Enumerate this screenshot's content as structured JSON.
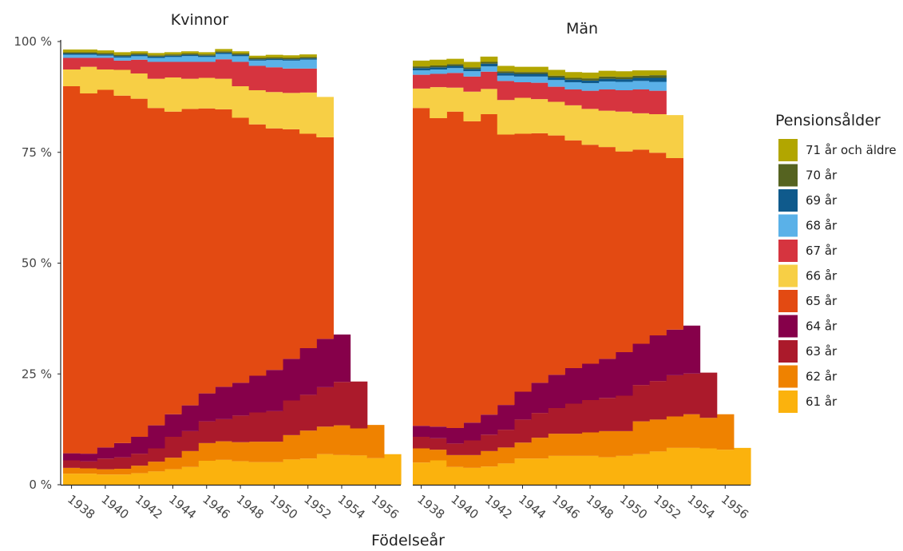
{
  "chart_data": [
    {
      "type": "area",
      "title": "Kvinnor",
      "xlabel": "Födelseår",
      "ylabel": "",
      "ylim": [
        0,
        100
      ],
      "yticks": [
        "0 %",
        "25 %",
        "50 %",
        "75 %",
        "100 %"
      ],
      "xticks": [
        "1938",
        "1940",
        "1942",
        "1944",
        "1946",
        "1948",
        "1950",
        "1952",
        "1954",
        "1956"
      ],
      "x": [
        1938,
        1939,
        1940,
        1941,
        1942,
        1943,
        1944,
        1945,
        1946,
        1947,
        1948,
        1949,
        1950,
        1951,
        1952,
        1953,
        1954,
        1955,
        1956,
        1957
      ],
      "series": [
        {
          "name": "61 år",
          "values": [
            2.5,
            2.5,
            2.3,
            2.3,
            2.6,
            3.0,
            3.5,
            4.0,
            5.4,
            5.6,
            5.3,
            5.1,
            5.1,
            5.7,
            5.9,
            6.9,
            6.7,
            6.6,
            6.0,
            6.9
          ]
        },
        {
          "name": "62 år",
          "values": [
            1.3,
            1.2,
            1.2,
            1.3,
            1.7,
            2.2,
            2.6,
            3.6,
            4.0,
            4.2,
            4.3,
            4.6,
            4.6,
            5.5,
            6.3,
            6.2,
            6.7,
            6.1,
            7.5,
            null
          ]
        },
        {
          "name": "63 år",
          "values": [
            1.7,
            1.6,
            2.4,
            2.6,
            2.7,
            3.0,
            4.7,
            4.5,
            4.9,
            5.0,
            6.0,
            6.6,
            6.9,
            7.8,
            8.1,
            8.9,
            9.8,
            10.6,
            null,
            null
          ]
        },
        {
          "name": "64 år",
          "values": [
            1.6,
            1.7,
            2.5,
            3.2,
            3.8,
            5.2,
            5.1,
            5.8,
            6.3,
            7.3,
            7.4,
            8.3,
            9.3,
            9.4,
            10.5,
            10.9,
            10.7,
            null,
            null,
            null
          ]
        },
        {
          "name": "65 år",
          "values": [
            82.8,
            81.3,
            80.7,
            78.4,
            76.3,
            71.6,
            68.3,
            66.9,
            64.3,
            62.6,
            59.8,
            56.7,
            54.5,
            51.8,
            48.4,
            45.5,
            null,
            null,
            null,
            null
          ]
        },
        {
          "name": "66 år",
          "values": [
            3.8,
            6.0,
            4.6,
            5.8,
            5.7,
            6.6,
            7.7,
            6.8,
            6.9,
            6.9,
            7.1,
            7.7,
            8.2,
            8.2,
            9.3,
            9.1,
            null,
            null,
            null,
            null
          ]
        },
        {
          "name": "67 år",
          "values": [
            2.6,
            2.0,
            2.6,
            2.1,
            3.1,
            3.8,
            3.5,
            3.8,
            3.6,
            4.4,
            5.5,
            5.5,
            5.6,
            5.5,
            5.4,
            null,
            null,
            null,
            null,
            null
          ]
        },
        {
          "name": "68 år",
          "values": [
            0.7,
            0.7,
            0.5,
            0.7,
            0.8,
            0.9,
            1.1,
            1.3,
            1.1,
            1.2,
            1.3,
            1.2,
            1.6,
            1.8,
            2.0,
            null,
            null,
            null,
            null,
            null
          ]
        },
        {
          "name": "69 år",
          "values": [
            0.3,
            0.3,
            0.3,
            0.3,
            0.3,
            0.3,
            0.3,
            0.3,
            0.3,
            0.3,
            0.3,
            0.3,
            0.3,
            0.3,
            0.3,
            null,
            null,
            null,
            null,
            null
          ]
        },
        {
          "name": "70 år",
          "values": [
            0.3,
            0.3,
            0.3,
            0.3,
            0.3,
            0.3,
            0.3,
            0.3,
            0.3,
            0.3,
            0.3,
            0.3,
            0.3,
            0.3,
            0.3,
            null,
            null,
            null,
            null,
            null
          ]
        },
        {
          "name": "71 år och äldre",
          "values": [
            0.6,
            0.6,
            0.6,
            0.6,
            0.5,
            0.5,
            0.5,
            0.5,
            0.5,
            0.5,
            0.5,
            0.5,
            0.6,
            0.6,
            0.6,
            null,
            null,
            null,
            null,
            null
          ]
        }
      ]
    },
    {
      "type": "area",
      "title": "Män",
      "xlabel": "Födelseår",
      "ylabel": "",
      "ylim": [
        0,
        100
      ],
      "xticks": [
        "1938",
        "1940",
        "1942",
        "1944",
        "1946",
        "1948",
        "1950",
        "1952",
        "1954",
        "1956"
      ],
      "x": [
        1938,
        1939,
        1940,
        1941,
        1942,
        1943,
        1944,
        1945,
        1946,
        1947,
        1948,
        1949,
        1950,
        1951,
        1952,
        1953,
        1954,
        1955,
        1956,
        1957
      ],
      "series": [
        {
          "name": "61 år",
          "values": [
            5.0,
            5.5,
            4.0,
            3.8,
            4.1,
            4.8,
            5.9,
            5.9,
            6.5,
            6.5,
            6.5,
            6.2,
            6.5,
            6.9,
            7.5,
            8.3,
            8.3,
            8.2,
            7.9,
            8.3
          ]
        },
        {
          "name": "62 år",
          "values": [
            3.2,
            2.4,
            2.7,
            2.9,
            3.5,
            3.6,
            3.6,
            4.7,
            5.0,
            5.0,
            5.3,
            5.9,
            5.6,
            7.4,
            7.2,
            7.1,
            7.6,
            6.9,
            8.0,
            null
          ]
        },
        {
          "name": "63 år",
          "values": [
            2.6,
            2.6,
            2.6,
            3.3,
            3.7,
            4.0,
            5.2,
            5.6,
            5.8,
            6.8,
            7.3,
            7.5,
            8.0,
            8.2,
            8.7,
            9.3,
            9.2,
            10.2,
            null,
            null
          ]
        },
        {
          "name": "64 år",
          "values": [
            2.5,
            2.6,
            3.5,
            4.0,
            4.5,
            5.6,
            6.3,
            6.8,
            7.5,
            8.0,
            8.2,
            8.8,
            9.8,
            9.3,
            10.3,
            10.3,
            10.8,
            null,
            null,
            null
          ]
        },
        {
          "name": "65 år",
          "values": [
            71.7,
            69.6,
            71.4,
            68.0,
            67.8,
            61.0,
            58.2,
            56.3,
            54.0,
            51.4,
            49.4,
            47.8,
            45.3,
            43.8,
            41.2,
            38.7,
            null,
            null,
            null,
            null
          ]
        },
        {
          "name": "66 år",
          "values": [
            4.4,
            7.0,
            5.4,
            6.7,
            5.7,
            7.8,
            8.1,
            7.7,
            7.6,
            7.9,
            8.1,
            8.2,
            9.0,
            8.2,
            8.7,
            9.7,
            null,
            null,
            null,
            null
          ]
        },
        {
          "name": "67 år",
          "values": [
            3.1,
            3.0,
            3.3,
            3.4,
            3.9,
            4.3,
            3.5,
            3.7,
            3.4,
            3.6,
            4.1,
            4.8,
            4.8,
            5.4,
            5.3,
            null,
            null,
            null,
            null,
            null
          ]
        },
        {
          "name": "68 år",
          "values": [
            1.0,
            1.0,
            1.1,
            1.2,
            1.2,
            1.2,
            1.3,
            1.4,
            1.5,
            1.6,
            1.7,
            1.8,
            1.9,
            1.9,
            2.0,
            null,
            null,
            null,
            null,
            null
          ]
        },
        {
          "name": "69 år",
          "values": [
            0.5,
            0.5,
            0.5,
            0.5,
            0.6,
            0.6,
            0.6,
            0.6,
            0.6,
            0.6,
            0.6,
            0.6,
            0.6,
            0.7,
            0.9,
            null,
            null,
            null,
            null,
            null
          ]
        },
        {
          "name": "70 år",
          "values": [
            0.4,
            0.4,
            0.4,
            0.4,
            0.4,
            0.4,
            0.4,
            0.4,
            0.4,
            0.4,
            0.5,
            0.5,
            0.5,
            0.5,
            0.6,
            null,
            null,
            null,
            null,
            null
          ]
        },
        {
          "name": "71 år och äldre",
          "values": [
            1.3,
            1.3,
            1.2,
            1.2,
            1.2,
            1.2,
            1.2,
            1.2,
            1.3,
            1.3,
            1.3,
            1.3,
            1.3,
            1.2,
            1.1,
            null,
            null,
            null,
            null,
            null
          ]
        }
      ]
    }
  ],
  "legend": {
    "title": "Pensionsålder",
    "placement": "right",
    "items": [
      {
        "name": "71 år och äldre",
        "color": "#b2a600"
      },
      {
        "name": "70 år",
        "color": "#556320"
      },
      {
        "name": "69 år",
        "color": "#0f5a8c"
      },
      {
        "name": "68 år",
        "color": "#5ab1e8"
      },
      {
        "name": "67 år",
        "color": "#d6343f"
      },
      {
        "name": "66 år",
        "color": "#f7cf45"
      },
      {
        "name": "65 år",
        "color": "#e34a12"
      },
      {
        "name": "64 år",
        "color": "#86004a"
      },
      {
        "name": "63 år",
        "color": "#ab1a2b"
      },
      {
        "name": "62 år",
        "color": "#ef8200"
      },
      {
        "name": "61 år",
        "color": "#fbb20d"
      }
    ]
  }
}
